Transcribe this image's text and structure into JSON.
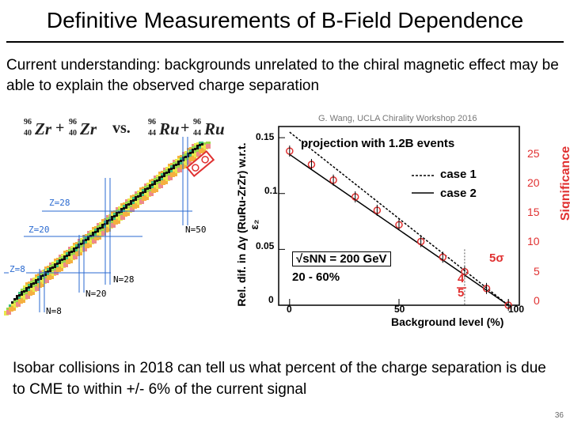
{
  "slide": {
    "title": "Definitive Measurements of B-Field Dependence",
    "intro": "Current understanding: backgrounds unrelated to the chiral magnetic effect may be able to explain the observed charge separation",
    "outro": "Isobar collisions in 2018 can tell us what percent of the charge separation is due to CME to within +/- 6% of the current signal",
    "page_number": "36"
  },
  "nuclide_chart": {
    "formula": {
      "zr_mass": "96",
      "zr_z": "40",
      "zr_symbol": "Zr",
      "plus": "+",
      "vs": "vs.",
      "ru_mass": "96",
      "ru_z": "44",
      "ru_symbol": "Ru"
    },
    "magic_labels": {
      "z28": "Z=28",
      "z20": "Z=20",
      "z8": "Z=8",
      "n50": "N=50",
      "n28": "N=28",
      "n20": "N=20",
      "n8": "N=8"
    }
  },
  "plot": {
    "credit": "G. Wang, UCLA Chirality Workshop 2016",
    "ylabel_left": "Rel. dif. in Δγ (RuRu-ZrZr) w.r.t. ε₂",
    "ylabel_right": "Significance",
    "xlabel": "Background level (%)",
    "legend_title": "projection with 1.2B events",
    "legend_case1": "case 1",
    "legend_case2": "case 2",
    "energy_label": "√sNN = 200 GeV",
    "centrality_label": "20 - 60%",
    "sigma_label": "5σ",
    "frac_num": "4",
    "frac_den": "5",
    "x_ticks": [
      "0",
      "50",
      "100"
    ],
    "y_ticks_left": [
      "0",
      "0.05",
      "0.1",
      "0.15"
    ],
    "y_ticks_right": [
      "0",
      "5",
      "10",
      "15",
      "20",
      "25"
    ],
    "colors": {
      "case1_line": "#000000",
      "case2_line": "#333333",
      "points": "#e03030",
      "significance": "#e03030"
    }
  },
  "chart_data": {
    "type": "line",
    "title": "projection with 1.2B events",
    "xlabel": "Background level (%)",
    "ylabel": "Rel. dif. in Δγ (RuRu-ZrZr) w.r.t. ε₂",
    "xlim": [
      -5,
      105
    ],
    "ylim": [
      0,
      0.16
    ],
    "series": [
      {
        "name": "case 1",
        "x": [
          0,
          100
        ],
        "y": [
          0.155,
          0
        ]
      },
      {
        "name": "case 2",
        "x": [
          0,
          100
        ],
        "y": [
          0.135,
          0
        ]
      },
      {
        "name": "",
        "x": [
          0,
          10,
          20,
          30,
          40,
          50,
          60,
          70,
          80,
          90,
          100
        ],
        "y": [
          0.138,
          0.126,
          0.112,
          0.097,
          0.085,
          0.072,
          0.057,
          0.043,
          0.03,
          0.015,
          0.0
        ]
      }
    ],
    "grid": false,
    "legend": "top-right"
  }
}
